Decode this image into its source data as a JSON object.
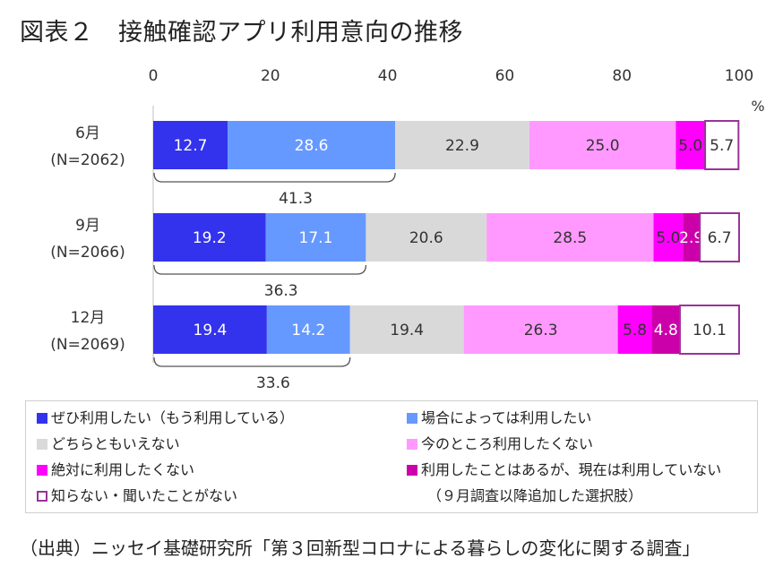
{
  "title": "図表２　接触確認アプリ利用意向の推移",
  "source": "（出典）ニッセイ基礎研究所「第３回新型コロナによる暮らしの変化に関する調査」",
  "chart_data": {
    "type": "bar",
    "orientation": "horizontal",
    "stacked": true,
    "xlim": [
      0,
      100
    ],
    "xticks": [
      "0",
      "20",
      "40",
      "60",
      "80",
      "100"
    ],
    "unit": "%",
    "categories": [
      {
        "line1": "6月",
        "line2": "(N=2062)"
      },
      {
        "line1": "9月",
        "line2": "(N=2066)"
      },
      {
        "line1": "12月",
        "line2": "(N=2069)"
      }
    ],
    "series": [
      {
        "name": "ぜひ利用したい（もう利用している）",
        "color": "#3333ee",
        "label_color": "#ffffff",
        "values": [
          12.7,
          19.2,
          19.4
        ]
      },
      {
        "name": "場合によっては利用したい",
        "color": "#6699ff",
        "label_color": "#ffffff",
        "values": [
          28.6,
          17.1,
          14.2
        ]
      },
      {
        "name": "どちらともいえない",
        "color": "#d9d9d9",
        "label_color": "#333333",
        "values": [
          22.9,
          20.6,
          19.4
        ]
      },
      {
        "name": "今のところ利用したくない",
        "color": "#ff99ff",
        "label_color": "#333333",
        "values": [
          25.0,
          28.5,
          26.3
        ]
      },
      {
        "name": "絶対に利用したくない",
        "color": "#ff00ff",
        "label_color": "#333333",
        "values": [
          5.0,
          5.0,
          5.8
        ]
      },
      {
        "name": "利用したことはあるが、現在は利用していない",
        "color": "#cc00aa",
        "label_color": "#ffffff",
        "values": [
          null,
          2.9,
          4.8
        ]
      },
      {
        "name": "知らない・聞いたことがない",
        "color": "#ffffff",
        "border": "#993399",
        "label_color": "#333333",
        "values": [
          5.7,
          6.7,
          10.1
        ]
      }
    ],
    "labels": [
      [
        "12.7",
        "28.6",
        "22.9",
        "25.0",
        "5.0",
        "",
        "5.7"
      ],
      [
        "19.2",
        "17.1",
        "20.6",
        "28.5",
        "5.0",
        "2.9",
        "6.7"
      ],
      [
        "19.4",
        "14.2",
        "19.4",
        "26.3",
        "5.8",
        "4.8",
        "10.1"
      ]
    ],
    "bracket_totals": [
      41.3,
      36.3,
      33.6
    ],
    "legend_note": "（９月調査以降追加した選択肢）"
  }
}
